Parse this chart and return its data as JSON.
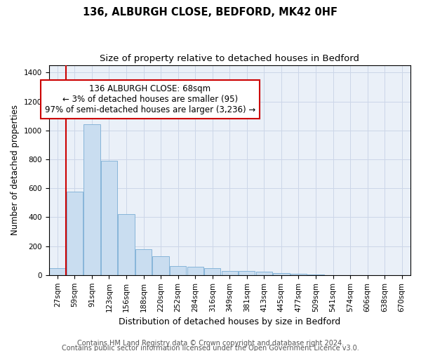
{
  "title1": "136, ALBURGH CLOSE, BEDFORD, MK42 0HF",
  "title2": "Size of property relative to detached houses in Bedford",
  "xlabel": "Distribution of detached houses by size in Bedford",
  "ylabel": "Number of detached properties",
  "categories": [
    "27sqm",
    "59sqm",
    "91sqm",
    "123sqm",
    "156sqm",
    "188sqm",
    "220sqm",
    "252sqm",
    "284sqm",
    "316sqm",
    "349sqm",
    "381sqm",
    "413sqm",
    "445sqm",
    "477sqm",
    "509sqm",
    "541sqm",
    "574sqm",
    "606sqm",
    "638sqm",
    "670sqm"
  ],
  "values": [
    47,
    575,
    1042,
    790,
    420,
    180,
    128,
    62,
    57,
    47,
    30,
    30,
    22,
    13,
    9,
    2,
    0,
    0,
    0,
    0,
    0
  ],
  "bar_color": "#c9ddf0",
  "bar_edge_color": "#7aadd4",
  "bar_edge_width": 0.6,
  "vline_x_pos": 0.5,
  "vline_color": "#cc0000",
  "vline_linewidth": 1.5,
  "annotation_text": "136 ALBURGH CLOSE: 68sqm\n← 3% of detached houses are smaller (95)\n97% of semi-detached houses are larger (3,236) →",
  "annotation_box_edgecolor": "#cc0000",
  "annotation_box_facecolor": "#ffffff",
  "ylim": [
    0,
    1450
  ],
  "yticks": [
    0,
    200,
    400,
    600,
    800,
    1000,
    1200,
    1400
  ],
  "grid_color": "#ccd6e8",
  "bg_color": "#eaf0f8",
  "footer1": "Contains HM Land Registry data © Crown copyright and database right 2024.",
  "footer2": "Contains public sector information licensed under the Open Government Licence v3.0.",
  "title1_fontsize": 10.5,
  "title2_fontsize": 9.5,
  "xlabel_fontsize": 9,
  "ylabel_fontsize": 8.5,
  "tick_fontsize": 7.5,
  "annotation_fontsize": 8.5,
  "footer_fontsize": 7
}
